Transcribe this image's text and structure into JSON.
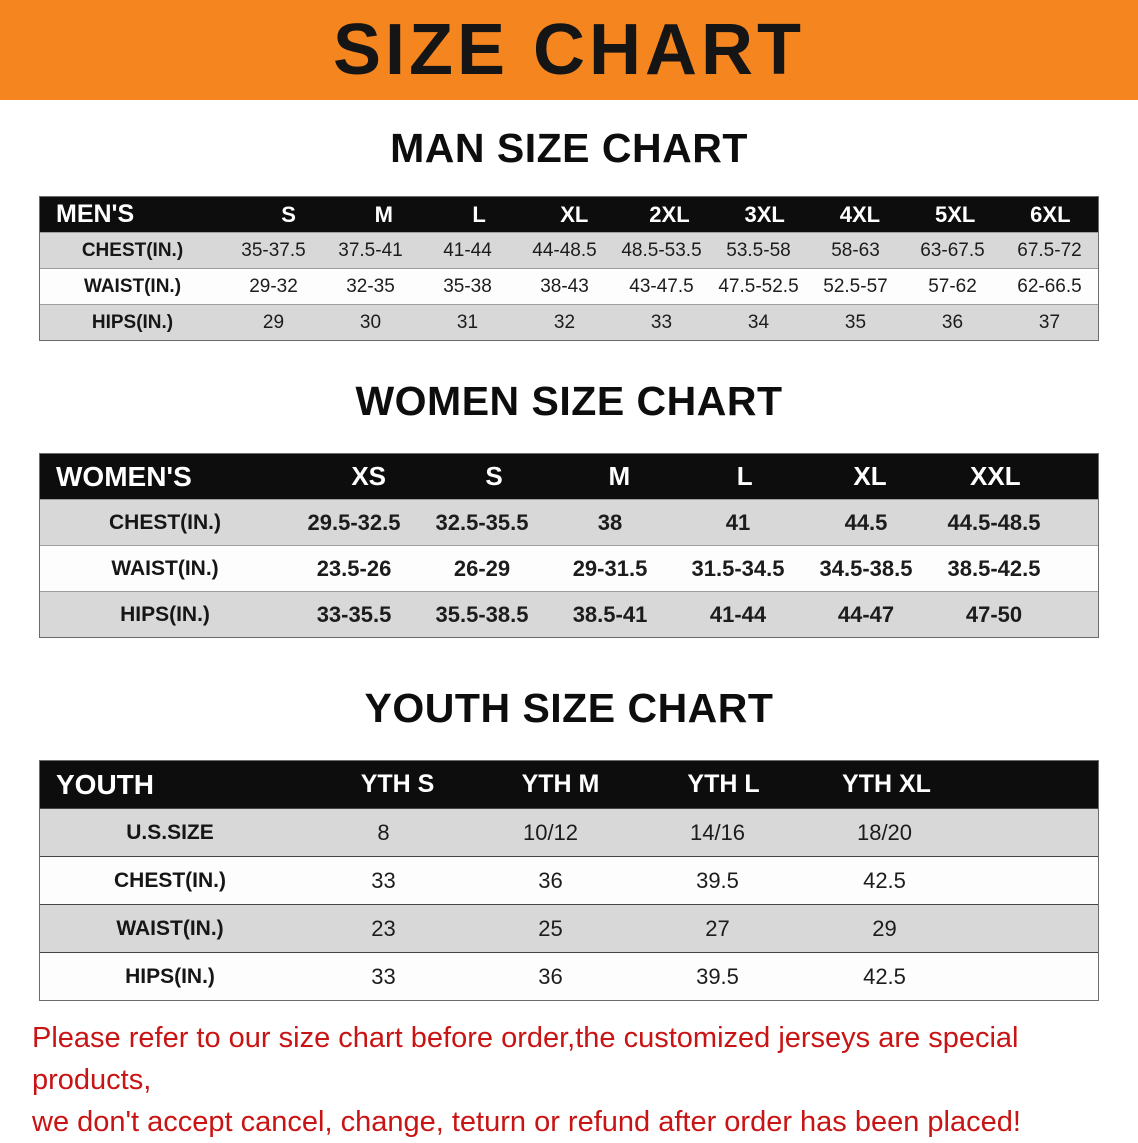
{
  "theme": {
    "banner_bg": "#f5861f",
    "table_header_bg": "#0d0d0d",
    "stripe_gray": "#d8d8d8",
    "disclaimer_red": "#c81414"
  },
  "banner": {
    "title": "SIZE CHART"
  },
  "sections": [
    {
      "id": "men",
      "heading": "MAN SIZE CHART",
      "header_label": "MEN'S",
      "columns": [
        "S",
        "M",
        "L",
        "XL",
        "2XL",
        "3XL",
        "4XL",
        "5XL",
        "6XL"
      ],
      "rows": [
        {
          "label": "CHEST(IN.)",
          "values": [
            "35-37.5",
            "37.5-41",
            "41-44",
            "44-48.5",
            "48.5-53.5",
            "53.5-58",
            "58-63",
            "63-67.5",
            "67.5-72"
          ]
        },
        {
          "label": "WAIST(IN.)",
          "values": [
            "29-32",
            "32-35",
            "35-38",
            "38-43",
            "43-47.5",
            "47.5-52.5",
            "52.5-57",
            "57-62",
            "62-66.5"
          ]
        },
        {
          "label": "HIPS(IN.)",
          "values": [
            "29",
            "30",
            "31",
            "32",
            "33",
            "34",
            "35",
            "36",
            "37"
          ]
        }
      ]
    },
    {
      "id": "women",
      "heading": "WOMEN SIZE CHART",
      "header_label": "WOMEN'S",
      "columns": [
        "XS",
        "S",
        "M",
        "L",
        "XL",
        "XXL"
      ],
      "rows": [
        {
          "label": "CHEST(IN.)",
          "values": [
            "29.5-32.5",
            "32.5-35.5",
            "38",
            "41",
            "44.5",
            "44.5-48.5"
          ]
        },
        {
          "label": "WAIST(IN.)",
          "values": [
            "23.5-26",
            "26-29",
            "29-31.5",
            "31.5-34.5",
            "34.5-38.5",
            "38.5-42.5"
          ]
        },
        {
          "label": "HIPS(IN.)",
          "values": [
            "33-35.5",
            "35.5-38.5",
            "38.5-41",
            "41-44",
            "44-47",
            "47-50"
          ]
        }
      ]
    },
    {
      "id": "youth",
      "heading": "YOUTH SIZE CHART",
      "header_label": "YOUTH",
      "columns": [
        "YTH S",
        "YTH M",
        "YTH L",
        "YTH XL"
      ],
      "rows": [
        {
          "label": "U.S.SIZE",
          "values": [
            "8",
            "10/12",
            "14/16",
            "18/20"
          ]
        },
        {
          "label": "CHEST(IN.)",
          "values": [
            "33",
            "36",
            "39.5",
            "42.5"
          ]
        },
        {
          "label": "WAIST(IN.)",
          "values": [
            "23",
            "25",
            "27",
            "29"
          ]
        },
        {
          "label": "HIPS(IN.)",
          "values": [
            "33",
            "36",
            "39.5",
            "42.5"
          ]
        }
      ]
    }
  ],
  "disclaimer": {
    "line1": "Please refer to our size chart before order,the customized jerseys are special products,",
    "line2": "we don't accept cancel, change, teturn or refund after order has been placed!"
  }
}
